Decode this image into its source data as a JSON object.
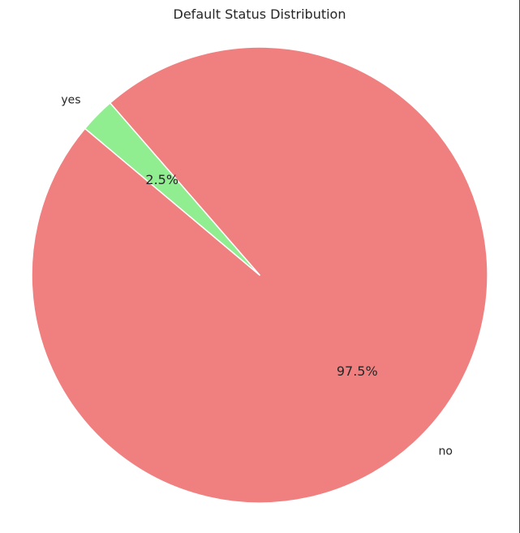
{
  "chart_data": {
    "type": "pie",
    "title": "Default Status Distribution",
    "categories": [
      "no",
      "yes"
    ],
    "values": [
      97.5,
      2.5
    ],
    "percent_labels": [
      "97.5%",
      "2.5%"
    ],
    "colors": [
      "#f08080",
      "#90ee90"
    ],
    "edge_color": "#ffffff",
    "legend": "none"
  }
}
